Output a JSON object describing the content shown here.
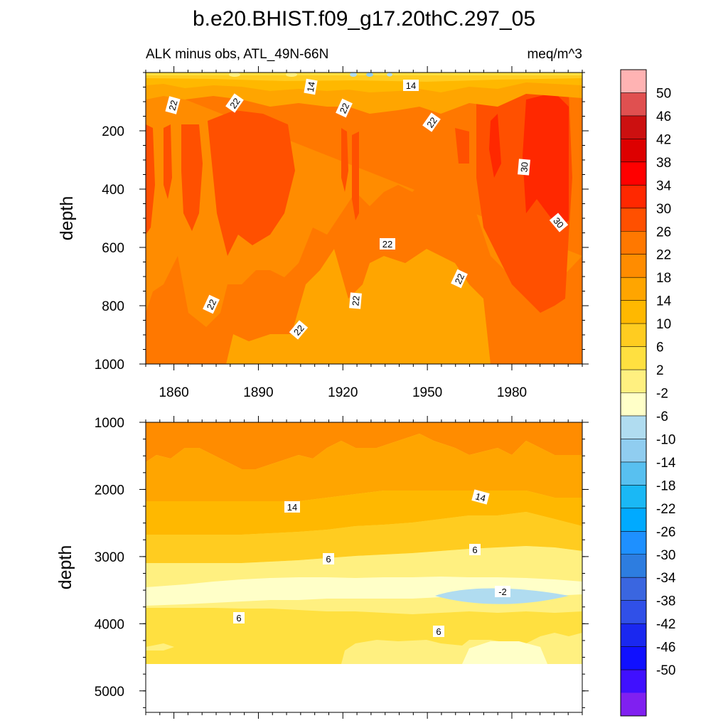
{
  "chart_data": {
    "type": "heatmap",
    "title": "b.e20.BHIST.f09_g17.20thC.297_05",
    "subtitle_left": "ALK minus obs, ATL_49N-66N",
    "subtitle_right": "meq/m^3",
    "ylabel": "depth",
    "x_ticks": [
      1860,
      1890,
      1920,
      1950,
      1980
    ],
    "xlim": [
      1850,
      2005
    ],
    "colorbar": {
      "labels": [
        "50",
        "46",
        "42",
        "38",
        "34",
        "30",
        "26",
        "22",
        "18",
        "14",
        "10",
        "6",
        "2",
        "-2",
        "-6",
        "-10",
        "-14",
        "-18",
        "-22",
        "-26",
        "-30",
        "-34",
        "-38",
        "-42",
        "-46",
        "-50"
      ],
      "colors": [
        "#ffb3b3",
        "#e05050",
        "#cc1010",
        "#dd0000",
        "#ff0000",
        "#ff2800",
        "#ff5000",
        "#ff7800",
        "#ff8c00",
        "#ffa500",
        "#ffb800",
        "#ffcc20",
        "#ffe040",
        "#fff080",
        "#ffffc8",
        "#b0dcf0",
        "#90cdf0",
        "#58c0f0",
        "#1ab8f5",
        "#00aaff",
        "#1e90ff",
        "#2d7de0",
        "#3a66e0",
        "#3050e8",
        "#1a28f0",
        "#1010ff",
        "#4010ff",
        "#8020f0"
      ]
    },
    "panels": [
      {
        "ylim": [
          0,
          1000
        ],
        "y_ticks": [
          200,
          400,
          600,
          800,
          1000
        ],
        "contour_labels": [
          "14",
          "14",
          "22",
          "22",
          "22",
          "22",
          "30",
          "30",
          "22",
          "22",
          "22",
          "22",
          "22"
        ]
      },
      {
        "ylim": [
          1000,
          5300
        ],
        "y_ticks": [
          1000,
          2000,
          3000,
          4000,
          5000
        ],
        "x_ticks_shown": false,
        "contour_labels": [
          "14",
          "14",
          "6",
          "6",
          "-2",
          "6",
          "6"
        ]
      }
    ]
  }
}
